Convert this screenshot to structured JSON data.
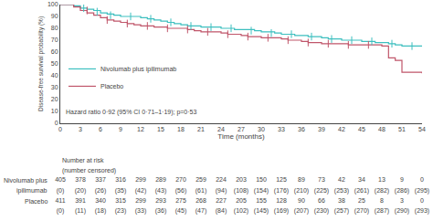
{
  "chart_data": {
    "type": "step",
    "xlabel": "Time (months)",
    "ylabel": "Disease-free survival probability (%)",
    "xlim": [
      0,
      54
    ],
    "ylim": [
      0,
      100
    ],
    "xticks": [
      0,
      3,
      6,
      9,
      12,
      15,
      18,
      21,
      24,
      27,
      30,
      33,
      36,
      39,
      42,
      45,
      48,
      51,
      54
    ],
    "yticks": [
      0,
      10,
      20,
      30,
      40,
      50,
      60,
      70,
      80,
      90,
      100
    ],
    "grid": false,
    "legend": "lower left",
    "annotation": "Hazard ratio 0·92 (95% CI 0·71–1·19); p=0·53",
    "series": [
      {
        "name": "Nivolumab plus ipilimumab",
        "color": "#3DBFBF",
        "x": [
          0,
          1,
          2,
          3,
          4,
          5,
          6,
          7,
          8,
          9,
          10,
          11,
          12,
          13,
          14,
          15,
          16,
          17,
          18,
          19,
          20,
          21,
          22,
          23,
          24,
          25,
          26,
          27,
          28,
          29,
          30,
          31,
          32,
          33,
          34,
          35,
          36,
          37,
          38,
          39,
          40,
          41,
          42,
          43,
          44,
          45,
          46,
          47,
          48,
          49,
          50,
          51,
          52,
          53,
          54
        ],
        "values": [
          100,
          100,
          99,
          97,
          96,
          95,
          93,
          92,
          91,
          90,
          90,
          90,
          89,
          88,
          87,
          86,
          85,
          84,
          83,
          82,
          82,
          81,
          81,
          81,
          80,
          80,
          79,
          79,
          79,
          78,
          77,
          77,
          76,
          75,
          75,
          74,
          74,
          73,
          73,
          72,
          71,
          71,
          70,
          70,
          70,
          69,
          69,
          68,
          68,
          67,
          66,
          65,
          65,
          65,
          65
        ],
        "censor_x": [
          3.5,
          5.5,
          7.5,
          10.5,
          13.5,
          16.5,
          19.5,
          22.5,
          25.5,
          28.5,
          31.5,
          34.5,
          37.5,
          40.5,
          43.5,
          46.5,
          49.5,
          52.5
        ],
        "censor_values": [
          97,
          94,
          91,
          90,
          88,
          85,
          82,
          81,
          80,
          78,
          76,
          75,
          73,
          71,
          70,
          69,
          67,
          65
        ]
      },
      {
        "name": "Placebo",
        "color": "#C0566A",
        "x": [
          0,
          1,
          2,
          3,
          4,
          5,
          6,
          7,
          8,
          9,
          10,
          11,
          12,
          13,
          14,
          15,
          16,
          17,
          18,
          19,
          20,
          21,
          22,
          23,
          24,
          25,
          26,
          27,
          28,
          29,
          30,
          31,
          32,
          33,
          34,
          35,
          36,
          37,
          38,
          39,
          40,
          41,
          42,
          43,
          44,
          45,
          46,
          47,
          48,
          49,
          50,
          51,
          52,
          53,
          54
        ],
        "values": [
          100,
          100,
          98,
          95,
          93,
          91,
          89,
          87,
          86,
          85,
          84,
          83,
          82,
          82,
          81,
          81,
          80,
          80,
          80,
          79,
          78,
          77,
          77,
          77,
          76,
          75,
          75,
          74,
          73,
          73,
          72,
          72,
          72,
          71,
          70,
          70,
          69,
          68,
          68,
          67,
          67,
          67,
          67,
          66,
          66,
          66,
          66,
          66,
          65,
          55,
          53,
          43,
          43,
          43,
          42
        ],
        "censor_x": [
          4,
          7,
          10,
          13,
          16,
          19,
          22,
          25,
          28,
          31,
          34,
          37,
          40,
          43,
          46
        ],
        "censor_values": [
          95,
          87,
          84,
          82,
          80,
          79,
          77,
          75,
          73,
          72,
          70,
          68,
          67,
          66,
          66
        ]
      }
    ],
    "risk_table": {
      "title": [
        "Number at risk",
        "(number censored)"
      ],
      "times": [
        0,
        3,
        6,
        9,
        12,
        15,
        18,
        21,
        24,
        27,
        30,
        33,
        36,
        39,
        42,
        45,
        48,
        51,
        54
      ],
      "rows": [
        {
          "label": [
            "Nivolumab plus",
            "ipilimumab"
          ],
          "at_risk": [
            405,
            378,
            337,
            316,
            299,
            289,
            270,
            259,
            224,
            203,
            150,
            125,
            89,
            73,
            42,
            34,
            13,
            9,
            0
          ],
          "censored": [
            0,
            20,
            26,
            35,
            42,
            43,
            56,
            61,
            94,
            108,
            154,
            176,
            210,
            225,
            253,
            261,
            282,
            286,
            295
          ],
          "censored_labels": [
            "(0)",
            "(20)",
            "(26)",
            "(35)",
            "(42)",
            "(43)",
            "(56)",
            "(61)",
            "(94)",
            "(108)",
            "(154)",
            "(176)",
            "(210)",
            "(225)",
            "(253)",
            "(261)",
            "(282)",
            "(286)",
            "(295)"
          ]
        },
        {
          "label": [
            "Placebo"
          ],
          "at_risk": [
            411,
            391,
            340,
            315,
            299,
            293,
            275,
            268,
            227,
            205,
            155,
            128,
            90,
            66,
            38,
            25,
            8,
            3,
            0
          ],
          "censored": [
            0,
            11,
            18,
            23,
            33,
            36,
            45,
            47,
            84,
            102,
            145,
            169,
            207,
            230,
            257,
            270,
            287,
            290,
            293
          ],
          "censored_labels": [
            "(0)",
            "(11)",
            "(18)",
            "(23)",
            "(33)",
            "(36)",
            "(45)",
            "(47)",
            "(84)",
            "(102)",
            "(145)",
            "(169)",
            "(207)",
            "(230)",
            "(257)",
            "(270)",
            "(287)",
            "(290)",
            "(293)"
          ]
        }
      ]
    }
  }
}
